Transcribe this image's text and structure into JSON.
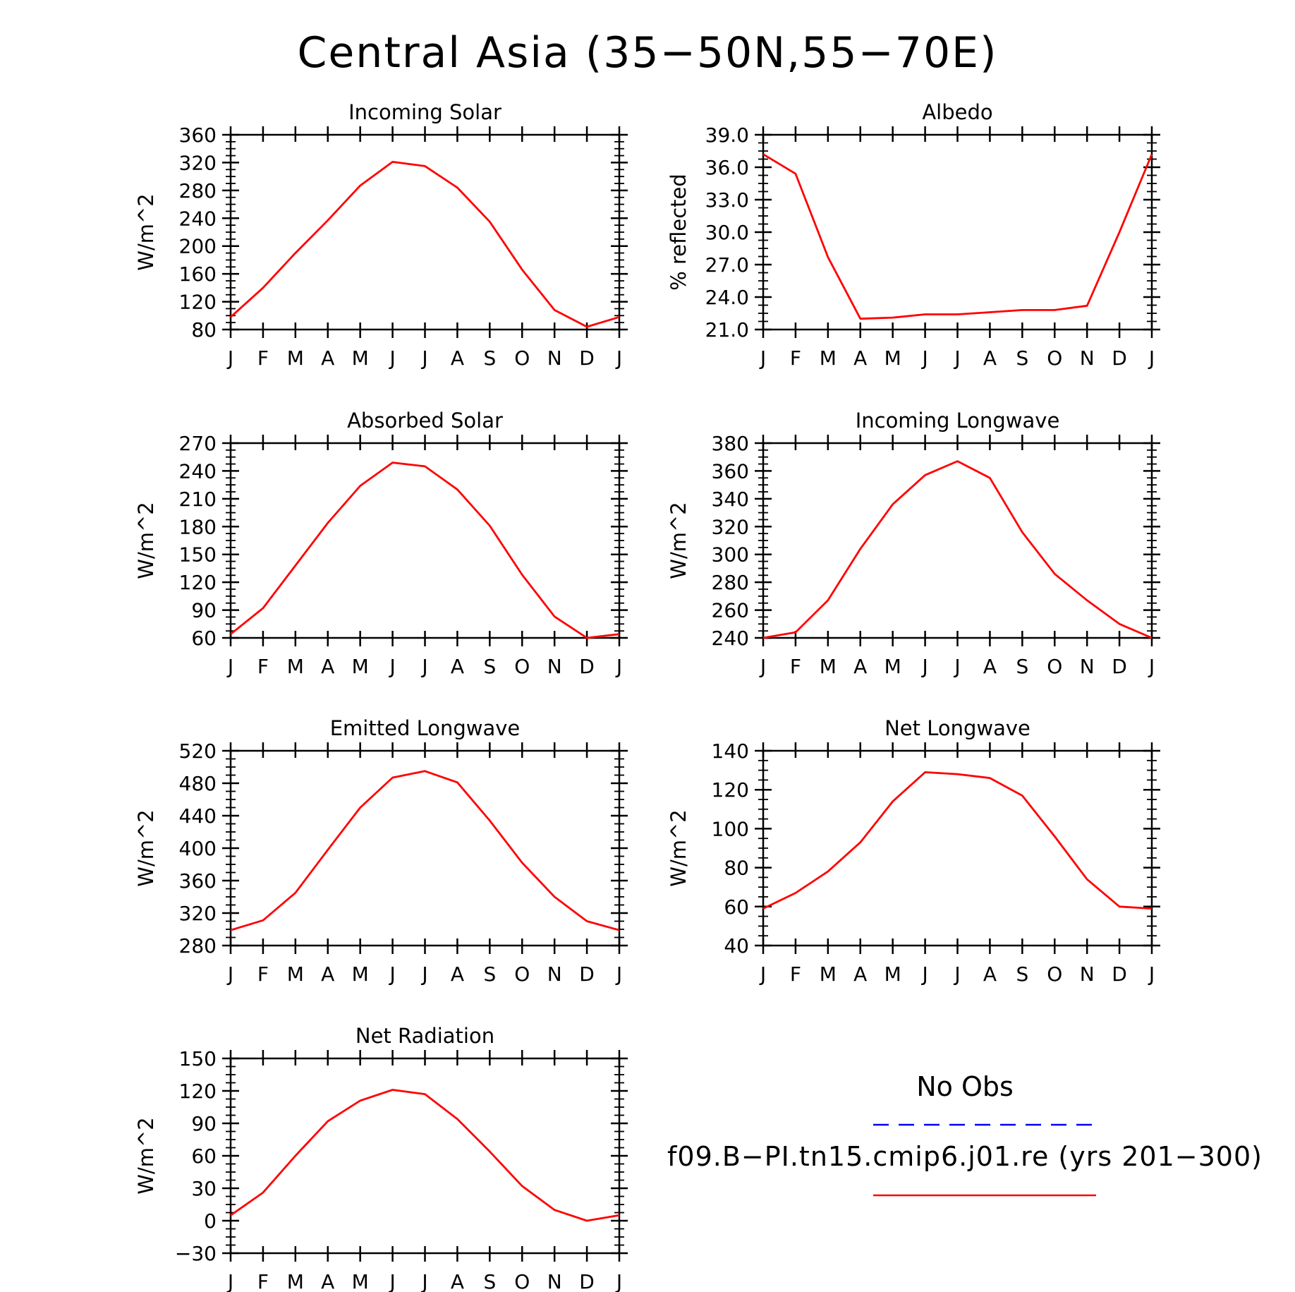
{
  "title": "Central Asia (35−50N,55−70E)",
  "months": [
    "J",
    "F",
    "M",
    "A",
    "M",
    "J",
    "J",
    "A",
    "S",
    "O",
    "N",
    "D",
    "J"
  ],
  "colors": {
    "model": "#ff0000",
    "obs": "#0000ff",
    "axis": "#000000"
  },
  "legend": {
    "obs_label": "No Obs",
    "model_label": "f09.B−PI.tn15.cmip6.j01.re (yrs 201−300)"
  },
  "chart_data": [
    {
      "type": "line",
      "title": "Incoming Solar",
      "ylabel": "W/m^2",
      "ylim": [
        80,
        360
      ],
      "yticks": [
        "80",
        "120",
        "160",
        "200",
        "240",
        "280",
        "320",
        "360"
      ],
      "x": [
        "J",
        "F",
        "M",
        "A",
        "M",
        "J",
        "J",
        "A",
        "S",
        "O",
        "N",
        "D",
        "J"
      ],
      "values": [
        98,
        140,
        190,
        237,
        287,
        321,
        315,
        284,
        235,
        166,
        108,
        84,
        98
      ]
    },
    {
      "type": "line",
      "title": "Albedo",
      "ylabel": "% reflected",
      "ylim": [
        21.0,
        39.0
      ],
      "yticks": [
        "21.0",
        "24.0",
        "27.0",
        "30.0",
        "33.0",
        "36.0",
        "39.0"
      ],
      "x": [
        "J",
        "F",
        "M",
        "A",
        "M",
        "J",
        "J",
        "A",
        "S",
        "O",
        "N",
        "D",
        "J"
      ],
      "values": [
        37.2,
        35.4,
        27.7,
        22.0,
        22.1,
        22.4,
        22.4,
        22.6,
        22.8,
        22.8,
        23.2,
        30.0,
        37.2
      ]
    },
    {
      "type": "line",
      "title": "Absorbed Solar",
      "ylabel": "W/m^2",
      "ylim": [
        60,
        270
      ],
      "yticks": [
        "60",
        "90",
        "120",
        "150",
        "180",
        "210",
        "240",
        "270"
      ],
      "x": [
        "J",
        "F",
        "M",
        "A",
        "M",
        "J",
        "J",
        "A",
        "S",
        "O",
        "N",
        "D",
        "J"
      ],
      "values": [
        64,
        92,
        138,
        184,
        224,
        249,
        245,
        220,
        181,
        128,
        83,
        60,
        64
      ]
    },
    {
      "type": "line",
      "title": "Incoming Longwave",
      "ylabel": "W/m^2",
      "ylim": [
        240,
        380
      ],
      "yticks": [
        "240",
        "260",
        "280",
        "300",
        "320",
        "340",
        "360",
        "380"
      ],
      "x": [
        "J",
        "F",
        "M",
        "A",
        "M",
        "J",
        "J",
        "A",
        "S",
        "O",
        "N",
        "D",
        "J"
      ],
      "values": [
        240,
        244,
        267,
        304,
        336,
        357,
        367,
        355,
        316,
        286,
        267,
        250,
        240
      ]
    },
    {
      "type": "line",
      "title": "Emitted Longwave",
      "ylabel": "W/m^2",
      "ylim": [
        280,
        520
      ],
      "yticks": [
        "280",
        "320",
        "360",
        "400",
        "440",
        "480",
        "520"
      ],
      "x": [
        "J",
        "F",
        "M",
        "A",
        "M",
        "J",
        "J",
        "A",
        "S",
        "O",
        "N",
        "D",
        "J"
      ],
      "values": [
        299,
        311,
        345,
        398,
        450,
        487,
        495,
        481,
        434,
        382,
        340,
        310,
        299
      ]
    },
    {
      "type": "line",
      "title": "Net Longwave",
      "ylabel": "W/m^2",
      "ylim": [
        40,
        140
      ],
      "yticks": [
        "40",
        "60",
        "80",
        "100",
        "120",
        "140"
      ],
      "x": [
        "J",
        "F",
        "M",
        "A",
        "M",
        "J",
        "J",
        "A",
        "S",
        "O",
        "N",
        "D",
        "J"
      ],
      "values": [
        59,
        67,
        78,
        93,
        114,
        129,
        128,
        126,
        117,
        96,
        74,
        60,
        59
      ]
    },
    {
      "type": "line",
      "title": "Net Radiation",
      "ylabel": "W/m^2",
      "ylim": [
        -30,
        150
      ],
      "yticks": [
        "−30",
        "0",
        "30",
        "60",
        "90",
        "120",
        "150"
      ],
      "x": [
        "J",
        "F",
        "M",
        "A",
        "M",
        "J",
        "J",
        "A",
        "S",
        "O",
        "N",
        "D",
        "J"
      ],
      "values": [
        5,
        26,
        60,
        92,
        111,
        121,
        117,
        94,
        64,
        32,
        10,
        0,
        5
      ]
    }
  ]
}
